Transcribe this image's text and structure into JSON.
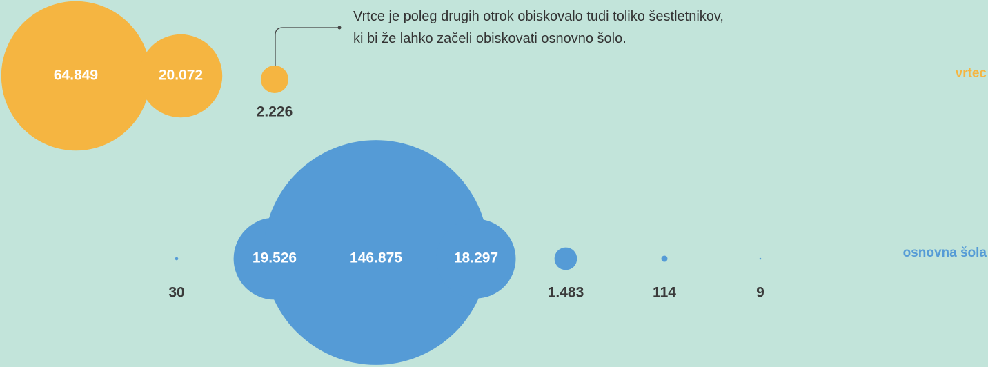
{
  "chart_data": {
    "type": "bubble",
    "annotation": [
      "Vrtce je poleg drugih otrok obiskovalo tudi toliko šestletnikov,",
      "ki bi že lahko začeli obiskovati osnovno šolo."
    ],
    "series": [
      {
        "name": "vrtec",
        "color": "#f5b541",
        "values": [
          64849,
          20072,
          2226
        ],
        "value_labels": [
          "64.849",
          "20.072",
          "2.226"
        ]
      },
      {
        "name": "osnovna šola",
        "color": "#559bd6",
        "values": [
          30,
          19526,
          146875,
          18297,
          1483,
          114,
          9
        ],
        "value_labels": [
          "30",
          "19.526",
          "146.875",
          "18.297",
          "1.483",
          "114",
          "9"
        ]
      }
    ]
  }
}
